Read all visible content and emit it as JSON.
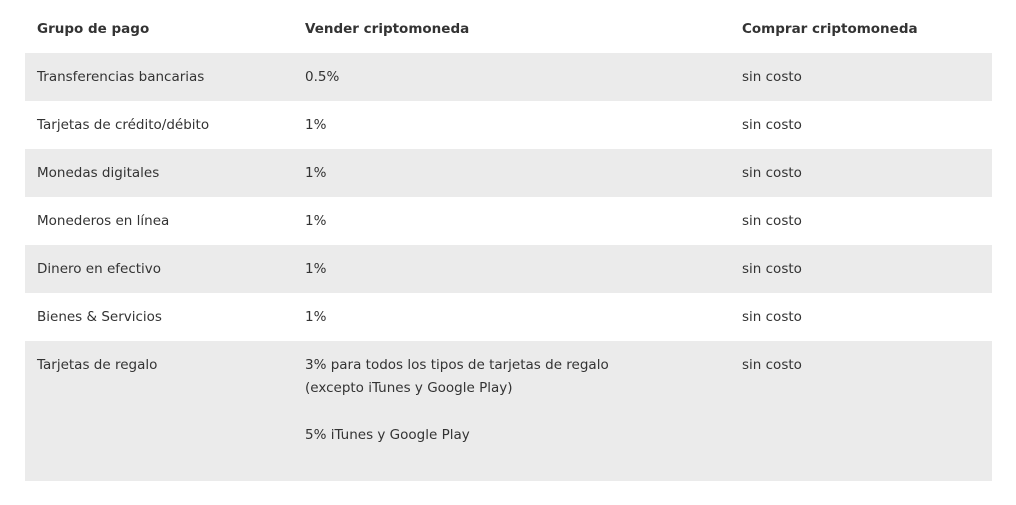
{
  "headers": {
    "group": "Grupo de pago",
    "sell": "Vender criptomoneda",
    "buy": "Comprar criptomoneda"
  },
  "rows": [
    {
      "group": "Transferencias bancarias",
      "sell": "0.5%",
      "buy": "sin costo"
    },
    {
      "group": "Tarjetas de crédito/débito",
      "sell": "1%",
      "buy": "sin costo"
    },
    {
      "group": "Monedas digitales",
      "sell": "1%",
      "buy": "sin costo"
    },
    {
      "group": "Monederos en línea",
      "sell": "1%",
      "buy": "sin costo"
    },
    {
      "group": "Dinero en efectivo",
      "sell": "1%",
      "buy": "sin costo"
    },
    {
      "group": "Bienes & Servicios",
      "sell": "1%",
      "buy": "sin costo"
    },
    {
      "group": "Tarjetas de regalo",
      "sell_line1": "3% para todos los tipos de tarjetas de regalo",
      "sell_line2": "(excepto iTunes y Google Play)",
      "sell_line3": "5% iTunes y Google Play",
      "buy": "sin costo"
    }
  ]
}
